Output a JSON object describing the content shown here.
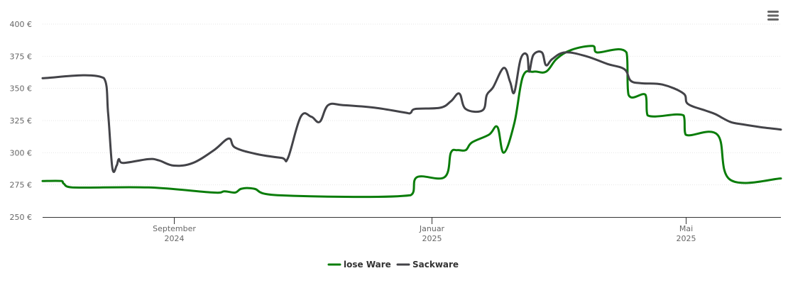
{
  "menu_icon": "hamburger-menu-icon",
  "chart_data": {
    "type": "line",
    "title": "",
    "xlabel": "",
    "ylabel": "",
    "ylim": [
      250,
      400
    ],
    "y_ticks": [
      {
        "value": 250,
        "label": "250 €"
      },
      {
        "value": 275,
        "label": "275 €"
      },
      {
        "value": 300,
        "label": "300 €"
      },
      {
        "value": 325,
        "label": "325 €"
      },
      {
        "value": 350,
        "label": "350 €"
      },
      {
        "value": 375,
        "label": "375 €"
      },
      {
        "value": 400,
        "label": "400 €"
      }
    ],
    "xlim": [
      "2024-07-01",
      "2025-06-15"
    ],
    "x_ticks": [
      {
        "date": "2024-09-01",
        "line1": "September",
        "line2": "2024"
      },
      {
        "date": "2025-01-01",
        "line1": "Januar",
        "line2": "2025"
      },
      {
        "date": "2025-05-01",
        "line1": "Mai",
        "line2": "2025"
      }
    ],
    "grid": true,
    "legend_position": "bottom-center",
    "series": [
      {
        "name": "lose Ware",
        "color": "#0a7d0a",
        "points": [
          [
            "2024-07-01",
            278
          ],
          [
            "2024-07-10",
            278
          ],
          [
            "2024-07-11",
            276
          ],
          [
            "2024-07-15",
            273
          ],
          [
            "2024-08-20",
            273
          ],
          [
            "2024-09-20",
            269
          ],
          [
            "2024-09-25",
            270
          ],
          [
            "2024-09-30",
            269
          ],
          [
            "2024-10-03",
            272
          ],
          [
            "2024-10-09",
            272
          ],
          [
            "2024-10-20",
            267
          ],
          [
            "2024-12-22",
            267
          ],
          [
            "2024-12-25",
            281
          ],
          [
            "2025-01-07",
            281
          ],
          [
            "2025-01-10",
            300
          ],
          [
            "2025-01-13",
            302
          ],
          [
            "2025-01-17",
            302
          ],
          [
            "2025-01-20",
            308
          ],
          [
            "2025-01-28",
            314
          ],
          [
            "2025-02-01",
            320
          ],
          [
            "2025-02-04",
            300
          ],
          [
            "2025-02-09",
            323
          ],
          [
            "2025-02-13",
            359
          ],
          [
            "2025-02-18",
            363
          ],
          [
            "2025-02-24",
            363
          ],
          [
            "2025-03-01",
            373
          ],
          [
            "2025-03-08",
            380
          ],
          [
            "2025-03-18",
            383
          ],
          [
            "2025-03-20",
            378
          ],
          [
            "2025-04-03",
            378
          ],
          [
            "2025-04-04",
            345
          ],
          [
            "2025-04-12",
            345
          ],
          [
            "2025-04-13",
            329
          ],
          [
            "2025-04-30",
            329
          ],
          [
            "2025-05-01",
            314
          ],
          [
            "2025-05-16",
            314
          ],
          [
            "2025-05-22",
            279
          ],
          [
            "2025-06-15",
            280
          ]
        ]
      },
      {
        "name": "Sackware",
        "color": "#434348",
        "points": [
          [
            "2024-07-01",
            358
          ],
          [
            "2024-07-30",
            358
          ],
          [
            "2024-08-01",
            330
          ],
          [
            "2024-08-03",
            288
          ],
          [
            "2024-08-05",
            290
          ],
          [
            "2024-08-06",
            295
          ],
          [
            "2024-08-08",
            292
          ],
          [
            "2024-08-20",
            295
          ],
          [
            "2024-08-25",
            294
          ],
          [
            "2024-09-01",
            290
          ],
          [
            "2024-09-10",
            292
          ],
          [
            "2024-09-20",
            302
          ],
          [
            "2024-09-27",
            311
          ],
          [
            "2024-09-30",
            304
          ],
          [
            "2024-10-10",
            299
          ],
          [
            "2024-10-22",
            296
          ],
          [
            "2024-10-25",
            296
          ],
          [
            "2024-10-31",
            328
          ],
          [
            "2024-11-05",
            328
          ],
          [
            "2024-11-09",
            324
          ],
          [
            "2024-11-13",
            337
          ],
          [
            "2024-11-20",
            337
          ],
          [
            "2024-12-05",
            335
          ],
          [
            "2024-12-20",
            331
          ],
          [
            "2024-12-22",
            331
          ],
          [
            "2024-12-24",
            334
          ],
          [
            "2025-01-05",
            335
          ],
          [
            "2025-01-10",
            340
          ],
          [
            "2025-01-14",
            346
          ],
          [
            "2025-01-17",
            334
          ],
          [
            "2025-01-25",
            333
          ],
          [
            "2025-01-27",
            345
          ],
          [
            "2025-01-30",
            351
          ],
          [
            "2025-02-04",
            366
          ],
          [
            "2025-02-07",
            355
          ],
          [
            "2025-02-09",
            347
          ],
          [
            "2025-02-12",
            373
          ],
          [
            "2025-02-15",
            376
          ],
          [
            "2025-02-16",
            363
          ],
          [
            "2025-02-18",
            376
          ],
          [
            "2025-02-22",
            378
          ],
          [
            "2025-02-24",
            368
          ],
          [
            "2025-02-27",
            373
          ],
          [
            "2025-03-05",
            378
          ],
          [
            "2025-03-15",
            375
          ],
          [
            "2025-03-25",
            369
          ],
          [
            "2025-04-02",
            365
          ],
          [
            "2025-04-05",
            356
          ],
          [
            "2025-04-10",
            354
          ],
          [
            "2025-04-20",
            353
          ],
          [
            "2025-04-30",
            346
          ],
          [
            "2025-05-02",
            338
          ],
          [
            "2025-05-10",
            333
          ],
          [
            "2025-05-15",
            330
          ],
          [
            "2025-05-22",
            324
          ],
          [
            "2025-05-28",
            322
          ],
          [
            "2025-06-05",
            320
          ],
          [
            "2025-06-15",
            318
          ]
        ]
      }
    ]
  }
}
